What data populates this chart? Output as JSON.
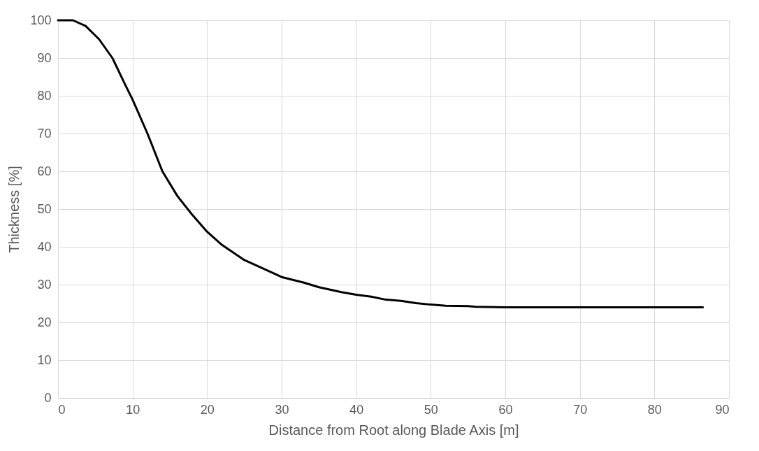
{
  "chart_data": {
    "type": "line",
    "xlabel": "Distance from Root along Blade Axis [m]",
    "ylabel": "Thickness [%]",
    "xlim": [
      0,
      90
    ],
    "xticks": [
      0,
      10,
      20,
      30,
      40,
      50,
      60,
      70,
      80,
      90
    ],
    "ylim": [
      0,
      100
    ],
    "yticks": [
      0,
      10,
      20,
      30,
      40,
      50,
      60,
      70,
      80,
      90,
      100
    ],
    "grid": true,
    "marker": "none",
    "line_style": "solid",
    "series": [
      {
        "color": "#000000",
        "x": [
          0,
          2,
          3.7,
          5.5,
          7.3,
          9,
          10,
          12,
          14,
          16,
          18,
          20,
          22,
          25,
          28,
          30,
          33,
          35,
          38,
          40,
          42,
          44,
          46,
          48,
          50,
          52,
          55,
          56,
          60,
          70,
          80,
          86.5
        ],
        "values": [
          100,
          100,
          98.5,
          95,
          90,
          83,
          79,
          70,
          60,
          53.5,
          48.5,
          44,
          40.5,
          36.5,
          33.8,
          32,
          30.5,
          29.3,
          28,
          27.3,
          26.8,
          26,
          25.7,
          25.1,
          24.7,
          24.4,
          24.3,
          24.1,
          24,
          24,
          24,
          24
        ]
      }
    ]
  }
}
